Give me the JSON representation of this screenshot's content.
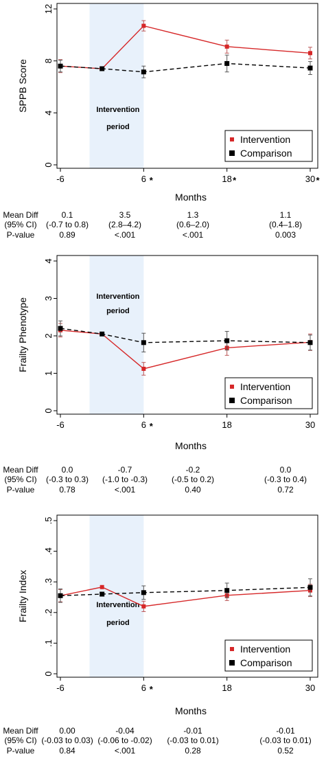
{
  "chart_data": [
    {
      "type": "line",
      "ylabel": "SPPB Score",
      "xlabel": "Months",
      "ylim": [
        0,
        12
      ],
      "yticks": [
        0,
        4,
        8,
        12
      ],
      "x_tick_labels": [
        "-6",
        "6",
        "18",
        "30"
      ],
      "x_tick_stars": [
        "",
        "*",
        "*",
        "*"
      ],
      "shaded_label_lines": [
        "Intervention",
        "period"
      ],
      "legend_placement": "bottom-right",
      "series": [
        {
          "name": "Intervention",
          "color": "#d62728",
          "style": "solid",
          "x": [
            -6,
            0,
            6,
            18,
            30
          ],
          "y": [
            7.6,
            7.4,
            10.7,
            9.1,
            8.6
          ],
          "err": [
            0.5,
            0,
            0.4,
            0.5,
            0.45
          ]
        },
        {
          "name": "Comparison",
          "color": "#000000",
          "style": "dashed",
          "x": [
            -6,
            0,
            6,
            18,
            30
          ],
          "y": [
            7.6,
            7.4,
            7.15,
            7.8,
            7.45
          ],
          "err": [
            0.45,
            0,
            0.45,
            0.65,
            0.5
          ]
        }
      ],
      "stats": {
        "row_labels": [
          "Mean Diff",
          "(95% CI)",
          "P-value"
        ],
        "columns": [
          [
            "0.1",
            "(-0.7 to 0.8)",
            "0.89"
          ],
          [
            "3.5",
            "(2.8–4.2)",
            "<.001"
          ],
          [
            "1.3",
            "(0.6–2.0)",
            "<.001"
          ],
          [
            "1.1",
            "(0.4–1.8)",
            "0.003"
          ]
        ]
      }
    },
    {
      "type": "line",
      "ylabel": "Frailty Phenotype",
      "xlabel": "Months",
      "ylim": [
        0,
        4
      ],
      "yticks": [
        0,
        1,
        2,
        3,
        4
      ],
      "x_tick_labels": [
        "-6",
        "6",
        "18",
        "30"
      ],
      "x_tick_stars": [
        "",
        "*",
        "",
        ""
      ],
      "shaded_label_lines": [
        "Intervention",
        "period"
      ],
      "legend_placement": "bottom-right",
      "series": [
        {
          "name": "Intervention",
          "color": "#d62728",
          "style": "solid",
          "x": [
            -6,
            0,
            6,
            18,
            30
          ],
          "y": [
            2.15,
            2.05,
            1.12,
            1.68,
            1.83
          ],
          "err": [
            0.18,
            0,
            0.17,
            0.2,
            0.22
          ]
        },
        {
          "name": "Comparison",
          "color": "#000000",
          "style": "dashed",
          "x": [
            -6,
            0,
            6,
            18,
            30
          ],
          "y": [
            2.2,
            2.05,
            1.82,
            1.87,
            1.82
          ],
          "err": [
            0.2,
            0,
            0.25,
            0.25,
            0.2
          ]
        }
      ],
      "stats": {
        "row_labels": [
          "Mean Diff",
          "(95% CI)",
          "P-value"
        ],
        "columns": [
          [
            "0.0",
            "(-0.3 to 0.3)",
            "0.78"
          ],
          [
            "-0.7",
            "(-1.0 to -0.3)",
            "<.001"
          ],
          [
            "-0.2",
            "(-0.5 to 0.2)",
            "0.40"
          ],
          [
            "0.0",
            "(-0.3 to 0.4)",
            "0.72"
          ]
        ]
      }
    },
    {
      "type": "line",
      "ylabel": "Frailty Index",
      "xlabel": "Months",
      "ylim": [
        0,
        0.5
      ],
      "yticks": [
        0,
        0.1,
        0.2,
        0.3,
        0.4,
        0.5
      ],
      "ytick_labels": [
        "0",
        ".1",
        ".2",
        ".3",
        ".4",
        ".5"
      ],
      "x_tick_labels": [
        "-6",
        "6",
        "18",
        "30"
      ],
      "x_tick_stars": [
        "",
        "*",
        "",
        ""
      ],
      "shaded_label_lines": [
        "Intervention",
        "period"
      ],
      "legend_placement": "bottom-right",
      "series": [
        {
          "name": "Intervention",
          "color": "#d62728",
          "style": "solid",
          "x": [
            -6,
            0,
            6,
            18,
            30
          ],
          "y": [
            0.255,
            0.283,
            0.22,
            0.256,
            0.272
          ],
          "err": [
            0.02,
            0,
            0.017,
            0.017,
            0.02
          ]
        },
        {
          "name": "Comparison",
          "color": "#000000",
          "style": "dashed",
          "x": [
            -6,
            0,
            6,
            18,
            30
          ],
          "y": [
            0.255,
            0.26,
            0.265,
            0.272,
            0.282
          ],
          "err": [
            0.022,
            0,
            0.022,
            0.024,
            0.028
          ]
        }
      ],
      "stats": {
        "row_labels": [
          "Mean Diff",
          "(95% CI)",
          "P-value"
        ],
        "columns": [
          [
            "0.00",
            "(-0.03 to 0.03)",
            "0.84"
          ],
          [
            "-0.04",
            "(-0.06 to -0.02)",
            "<.001"
          ],
          [
            "-0.01",
            "(-0.03 to 0.01)",
            "0.28"
          ],
          [
            "-0.01",
            "(-0.03 to 0.01)",
            "0.52"
          ]
        ]
      }
    }
  ]
}
